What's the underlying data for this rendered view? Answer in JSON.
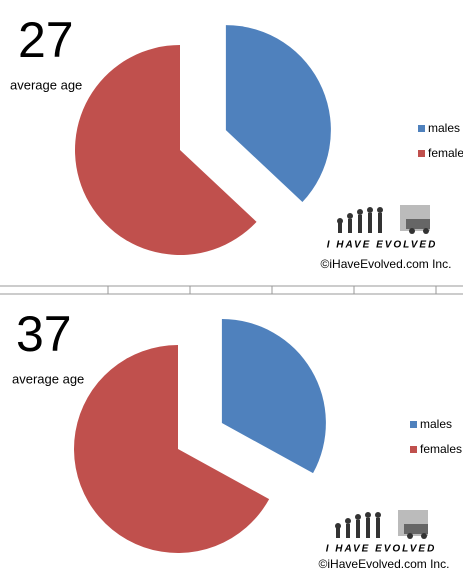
{
  "chart_data": [
    {
      "type": "pie",
      "title": "27",
      "subtitle": "average age",
      "categories": [
        "males",
        "female"
      ],
      "values": [
        37,
        63
      ],
      "colors": [
        "#4f81bd",
        "#c0504d"
      ],
      "annotations": [
        "I HAVE EVOLVED",
        "©iHaveEvolved.com Inc."
      ]
    },
    {
      "type": "pie",
      "title": "37",
      "subtitle": "average age",
      "categories": [
        "males",
        "females"
      ],
      "values": [
        33,
        67
      ],
      "colors": [
        "#4f81bd",
        "#c0504d"
      ],
      "annotations": [
        "I HAVE EVOLVED",
        "©iHaveEvolved.com Inc."
      ]
    }
  ]
}
